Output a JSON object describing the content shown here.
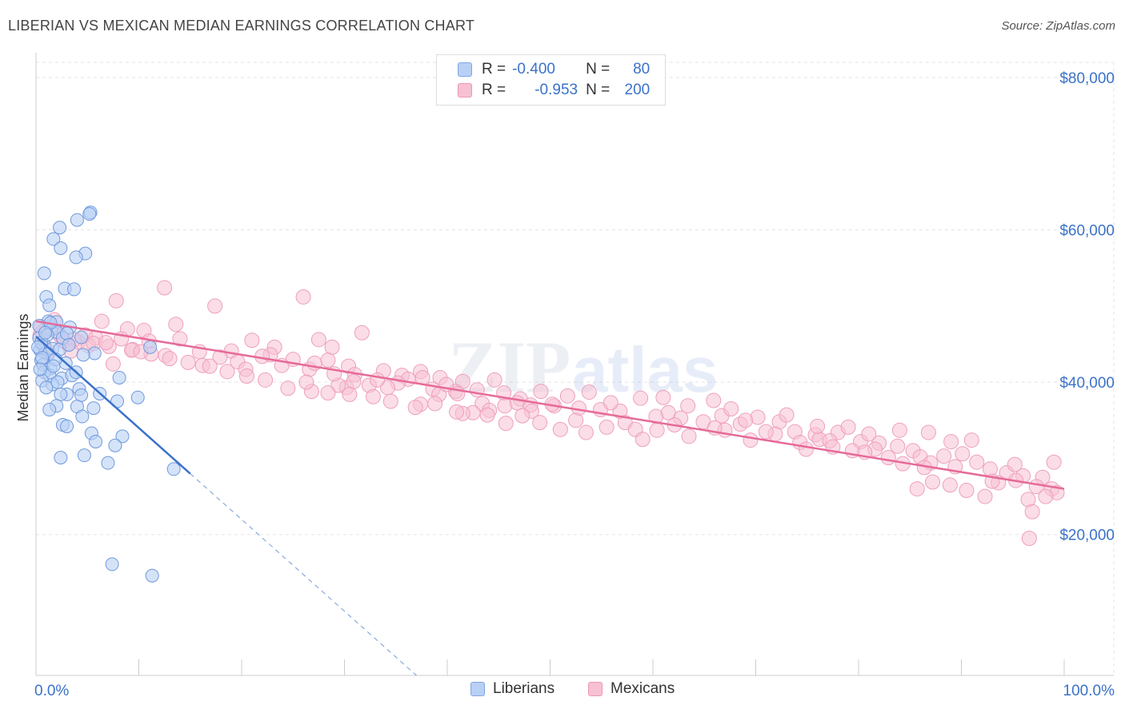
{
  "title": "LIBERIAN VS MEXICAN MEDIAN EARNINGS CORRELATION CHART",
  "source": "Source: ZipAtlas.com",
  "watermark": {
    "zip": "ZIP",
    "atlas": "atlas"
  },
  "colors": {
    "blue": "#3b72c9",
    "blue_fill": "#b9d0f5",
    "pink": "#e66a98",
    "pink_fill": "#f7c1d3",
    "grid": "#e3e3e3"
  },
  "legend": {
    "liberians": {
      "r_label": "R =",
      "r_value": "-0.400",
      "n_label": "N =",
      "n_value": "80"
    },
    "mexicans": {
      "r_label": "R =",
      "r_value": "-0.953",
      "n_label": "N =",
      "n_value": "200"
    }
  },
  "bottom_legend": {
    "liberians": "Liberians",
    "mexicans": "Mexicans"
  },
  "chart_data": {
    "type": "scatter",
    "xlabel": "",
    "ylabel": "Median Earnings",
    "xlim": [
      0,
      100
    ],
    "ylim": [
      1500,
      82000
    ],
    "x_tick_labels": [
      "0.0%",
      "100.0%"
    ],
    "y_ticks": [
      20000,
      40000,
      60000,
      80000
    ],
    "y_tick_labels": [
      "$20,000",
      "$40,000",
      "$60,000",
      "$80,000"
    ],
    "grid": true,
    "legend_position": "top-center",
    "series": [
      {
        "name": "Liberians",
        "color": "#3b72c9",
        "trend": {
          "x": [
            0,
            15
          ],
          "y": [
            46000,
            28000
          ],
          "dashed_to": {
            "x": 37,
            "y": 1500
          }
        },
        "points": [
          [
            5.3,
            62.3
          ],
          [
            5.2,
            62.1
          ],
          [
            4.0,
            61.3
          ],
          [
            2.3,
            60.3
          ],
          [
            1.7,
            58.8
          ],
          [
            2.4,
            57.6
          ],
          [
            4.8,
            56.9
          ],
          [
            3.9,
            56.4
          ],
          [
            0.8,
            54.3
          ],
          [
            2.8,
            52.3
          ],
          [
            3.7,
            52.2
          ],
          [
            1.0,
            51.2
          ],
          [
            1.3,
            50.1
          ],
          [
            1.2,
            48.0
          ],
          [
            2.0,
            47.9
          ],
          [
            3.3,
            47.2
          ],
          [
            0.3,
            47.4
          ],
          [
            1.5,
            46.9
          ],
          [
            2.0,
            46.6
          ],
          [
            4.4,
            45.9
          ],
          [
            0.3,
            45.8
          ],
          [
            0.8,
            44.9
          ],
          [
            0.4,
            44.2
          ],
          [
            0.9,
            43.9
          ],
          [
            1.6,
            44.4
          ],
          [
            2.3,
            44.3
          ],
          [
            11.1,
            44.6
          ],
          [
            5.7,
            43.8
          ],
          [
            4.6,
            43.6
          ],
          [
            1.2,
            43.7
          ],
          [
            0.5,
            42.9
          ],
          [
            0.7,
            42.3
          ],
          [
            1.4,
            41.8
          ],
          [
            2.9,
            42.5
          ],
          [
            0.8,
            41.3
          ],
          [
            1.3,
            40.9
          ],
          [
            2.5,
            40.5
          ],
          [
            0.6,
            40.2
          ],
          [
            3.5,
            40.9
          ],
          [
            3.9,
            41.3
          ],
          [
            8.1,
            40.6
          ],
          [
            1.6,
            39.7
          ],
          [
            1.0,
            39.3
          ],
          [
            4.2,
            39.1
          ],
          [
            3.0,
            38.4
          ],
          [
            2.4,
            38.4
          ],
          [
            4.4,
            38.3
          ],
          [
            9.9,
            38.0
          ],
          [
            7.9,
            37.5
          ],
          [
            2.0,
            36.9
          ],
          [
            1.3,
            36.4
          ],
          [
            4.0,
            36.8
          ],
          [
            5.6,
            36.6
          ],
          [
            2.6,
            34.4
          ],
          [
            3.0,
            34.2
          ],
          [
            4.5,
            35.5
          ],
          [
            5.4,
            33.3
          ],
          [
            8.4,
            32.9
          ],
          [
            5.8,
            32.2
          ],
          [
            7.7,
            31.7
          ],
          [
            2.4,
            30.1
          ],
          [
            4.7,
            30.4
          ],
          [
            7.0,
            29.4
          ],
          [
            13.4,
            28.6
          ],
          [
            7.4,
            16.1
          ],
          [
            11.3,
            14.6
          ],
          [
            0.5,
            45.2
          ],
          [
            1.1,
            46.2
          ],
          [
            0.2,
            44.6
          ],
          [
            1.9,
            43.0
          ],
          [
            0.6,
            43.2
          ],
          [
            2.6,
            45.8
          ],
          [
            1.4,
            47.8
          ],
          [
            0.9,
            46.5
          ],
          [
            3.0,
            46.4
          ],
          [
            1.7,
            42.1
          ],
          [
            0.4,
            41.7
          ],
          [
            2.1,
            40.0
          ],
          [
            6.2,
            38.5
          ],
          [
            3.2,
            44.9
          ]
        ]
      },
      {
        "name": "Mexicans",
        "color": "#e66a98",
        "trend": {
          "x": [
            0,
            100
          ],
          "y": [
            48000,
            26000
          ]
        },
        "points": [
          [
            12.5,
            52.4
          ],
          [
            26.0,
            51.2
          ],
          [
            7.8,
            50.7
          ],
          [
            17.4,
            50.0
          ],
          [
            1.8,
            48.2
          ],
          [
            6.4,
            48.0
          ],
          [
            13.6,
            47.6
          ],
          [
            0.5,
            47.3
          ],
          [
            8.9,
            47.0
          ],
          [
            10.5,
            46.8
          ],
          [
            31.7,
            46.5
          ],
          [
            2.1,
            46.5
          ],
          [
            4.8,
            46.2
          ],
          [
            0.4,
            46.2
          ],
          [
            14.0,
            45.7
          ],
          [
            5.8,
            45.8
          ],
          [
            2.7,
            45.4
          ],
          [
            8.3,
            45.7
          ],
          [
            4.1,
            45.3
          ],
          [
            11.0,
            45.4
          ],
          [
            21.0,
            45.5
          ],
          [
            27.5,
            45.6
          ],
          [
            3.0,
            45.1
          ],
          [
            28.8,
            44.6
          ],
          [
            5.1,
            44.8
          ],
          [
            0.8,
            44.7
          ],
          [
            23.2,
            44.6
          ],
          [
            9.4,
            44.3
          ],
          [
            15.9,
            44.0
          ],
          [
            19.0,
            44.1
          ],
          [
            22.8,
            43.6
          ],
          [
            12.6,
            43.5
          ],
          [
            1.2,
            44.0
          ],
          [
            17.9,
            43.3
          ],
          [
            25.0,
            43.0
          ],
          [
            28.4,
            42.9
          ],
          [
            7.5,
            42.4
          ],
          [
            19.6,
            42.7
          ],
          [
            30.4,
            42.1
          ],
          [
            23.9,
            42.2
          ],
          [
            16.2,
            42.2
          ],
          [
            20.4,
            41.7
          ],
          [
            26.6,
            41.7
          ],
          [
            33.8,
            41.5
          ],
          [
            37.4,
            41.4
          ],
          [
            31.0,
            41.0
          ],
          [
            35.6,
            40.9
          ],
          [
            36.2,
            40.4
          ],
          [
            37.6,
            40.6
          ],
          [
            39.3,
            40.6
          ],
          [
            41.5,
            40.1
          ],
          [
            44.6,
            40.3
          ],
          [
            35.2,
            39.9
          ],
          [
            32.4,
            39.6
          ],
          [
            30.2,
            39.3
          ],
          [
            29.4,
            39.6
          ],
          [
            34.2,
            39.3
          ],
          [
            38.6,
            39.1
          ],
          [
            40.8,
            38.8
          ],
          [
            42.9,
            39.0
          ],
          [
            41.0,
            38.5
          ],
          [
            45.5,
            38.6
          ],
          [
            49.1,
            38.8
          ],
          [
            53.8,
            38.7
          ],
          [
            51.7,
            38.2
          ],
          [
            39.2,
            38.4
          ],
          [
            47.1,
            37.8
          ],
          [
            37.4,
            37.1
          ],
          [
            43.4,
            37.2
          ],
          [
            45.6,
            36.9
          ],
          [
            46.8,
            37.3
          ],
          [
            48.1,
            37.0
          ],
          [
            50.4,
            36.9
          ],
          [
            52.8,
            36.6
          ],
          [
            44.1,
            36.3
          ],
          [
            42.5,
            36.0
          ],
          [
            48.2,
            36.2
          ],
          [
            41.5,
            35.9
          ],
          [
            54.9,
            36.4
          ],
          [
            58.8,
            37.9
          ],
          [
            61.0,
            38.0
          ],
          [
            63.4,
            36.9
          ],
          [
            65.9,
            37.6
          ],
          [
            56.8,
            36.2
          ],
          [
            60.3,
            35.5
          ],
          [
            57.3,
            34.7
          ],
          [
            52.5,
            35.0
          ],
          [
            62.7,
            35.3
          ],
          [
            64.9,
            34.8
          ],
          [
            66.7,
            35.6
          ],
          [
            68.5,
            34.5
          ],
          [
            70.2,
            35.4
          ],
          [
            72.3,
            34.8
          ],
          [
            67.0,
            33.7
          ],
          [
            62.1,
            34.4
          ],
          [
            60.4,
            33.7
          ],
          [
            58.3,
            33.8
          ],
          [
            71.9,
            33.2
          ],
          [
            73.8,
            33.5
          ],
          [
            75.8,
            33.1
          ],
          [
            78.0,
            33.4
          ],
          [
            76.2,
            32.5
          ],
          [
            74.3,
            32.1
          ],
          [
            69.5,
            32.4
          ],
          [
            77.2,
            32.3
          ],
          [
            80.2,
            32.2
          ],
          [
            82.0,
            32.0
          ],
          [
            83.8,
            31.6
          ],
          [
            81.6,
            31.2
          ],
          [
            79.4,
            31.0
          ],
          [
            77.5,
            31.5
          ],
          [
            85.3,
            31.0
          ],
          [
            86.0,
            30.2
          ],
          [
            88.3,
            30.3
          ],
          [
            90.1,
            30.6
          ],
          [
            91.5,
            29.5
          ],
          [
            84.3,
            29.3
          ],
          [
            87.0,
            29.4
          ],
          [
            89.4,
            28.9
          ],
          [
            92.8,
            28.6
          ],
          [
            94.4,
            28.1
          ],
          [
            96.0,
            27.7
          ],
          [
            95.3,
            27.1
          ],
          [
            93.6,
            26.8
          ],
          [
            97.9,
            27.5
          ],
          [
            98.8,
            26.0
          ],
          [
            99.3,
            25.5
          ],
          [
            97.3,
            26.3
          ],
          [
            96.5,
            24.6
          ],
          [
            92.3,
            25.0
          ],
          [
            90.5,
            25.8
          ],
          [
            88.9,
            26.5
          ],
          [
            87.2,
            26.9
          ],
          [
            85.7,
            26.0
          ],
          [
            98.2,
            25.0
          ],
          [
            96.9,
            23.0
          ],
          [
            96.6,
            19.5
          ],
          [
            99.0,
            29.5
          ],
          [
            95.2,
            29.2
          ],
          [
            93.0,
            27.0
          ],
          [
            91.0,
            32.4
          ],
          [
            89.0,
            32.2
          ],
          [
            86.8,
            33.4
          ],
          [
            84.0,
            33.7
          ],
          [
            81.0,
            33.2
          ],
          [
            79.0,
            34.1
          ],
          [
            76.0,
            34.2
          ],
          [
            73.0,
            35.7
          ],
          [
            69.0,
            35.0
          ],
          [
            66.0,
            34.0
          ],
          [
            63.5,
            32.9
          ],
          [
            59.0,
            32.5
          ],
          [
            55.5,
            34.1
          ],
          [
            53.5,
            33.4
          ],
          [
            51.0,
            33.8
          ],
          [
            49.0,
            34.7
          ],
          [
            47.3,
            35.6
          ],
          [
            45.7,
            34.6
          ],
          [
            43.9,
            35.7
          ],
          [
            40.9,
            36.1
          ],
          [
            38.8,
            37.2
          ],
          [
            36.9,
            36.7
          ],
          [
            34.5,
            37.5
          ],
          [
            32.8,
            38.1
          ],
          [
            30.5,
            38.4
          ],
          [
            28.4,
            38.6
          ],
          [
            26.8,
            38.8
          ],
          [
            24.5,
            39.2
          ],
          [
            22.3,
            40.3
          ],
          [
            20.5,
            40.8
          ],
          [
            18.6,
            41.4
          ],
          [
            16.9,
            42.1
          ],
          [
            14.8,
            42.6
          ],
          [
            13.0,
            43.1
          ],
          [
            11.2,
            43.7
          ],
          [
            9.3,
            44.2
          ],
          [
            7.1,
            44.7
          ],
          [
            5.6,
            45.1
          ],
          [
            3.7,
            45.6
          ],
          [
            2.4,
            46.0
          ],
          [
            1.0,
            47.1
          ],
          [
            0.6,
            46.6
          ],
          [
            3.4,
            44.1
          ],
          [
            6.8,
            45.2
          ],
          [
            10.2,
            44.0
          ],
          [
            22.0,
            43.4
          ],
          [
            27.1,
            42.5
          ],
          [
            30.9,
            40.1
          ],
          [
            33.2,
            40.3
          ],
          [
            26.3,
            40.0
          ],
          [
            29.0,
            41.1
          ],
          [
            39.9,
            39.7
          ],
          [
            50.2,
            37.1
          ],
          [
            55.9,
            37.3
          ],
          [
            61.5,
            36.0
          ],
          [
            67.6,
            36.5
          ],
          [
            71.0,
            33.5
          ],
          [
            74.9,
            31.2
          ],
          [
            80.6,
            30.8
          ],
          [
            82.9,
            30.1
          ],
          [
            86.4,
            28.8
          ]
        ]
      }
    ]
  }
}
